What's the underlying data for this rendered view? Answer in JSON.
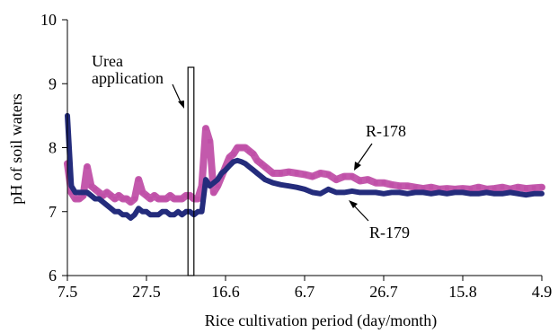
{
  "chart_data": {
    "type": "line",
    "title": "",
    "xlabel": "Rice cultivation period (day/month)",
    "ylabel": "pH of soil waters",
    "ylim": [
      6,
      10
    ],
    "xlim": [
      0,
      120
    ],
    "xticks": [
      {
        "x": 0,
        "label": "7.5"
      },
      {
        "x": 20,
        "label": "27.5"
      },
      {
        "x": 40,
        "label": "16.6"
      },
      {
        "x": 60,
        "label": "6.7"
      },
      {
        "x": 80,
        "label": "26.7"
      },
      {
        "x": 100,
        "label": "15.8"
      },
      {
        "x": 120,
        "label": "4.9"
      }
    ],
    "yticks": [
      6,
      7,
      8,
      9,
      10
    ],
    "grid": false,
    "legend": "none",
    "annotations": {
      "urea_label_line1": "Urea",
      "urea_label_line2": "application",
      "urea_period": [
        30.5,
        32.0
      ],
      "series_label_1": "R-178",
      "series_label_2": "R-179"
    },
    "series": [
      {
        "name": "R-178",
        "color": "#c050a8",
        "x": [
          0,
          1,
          2,
          3,
          4,
          5,
          6,
          7,
          8,
          9,
          10,
          11,
          12,
          13,
          14,
          15,
          16,
          17,
          18,
          19,
          20,
          21,
          22,
          23,
          24,
          25,
          26,
          27,
          28,
          29,
          30,
          31,
          32,
          33,
          34,
          35,
          36,
          37,
          38,
          39,
          40,
          41,
          42,
          43,
          44,
          45,
          46,
          47,
          48,
          49,
          50,
          52,
          54,
          56,
          58,
          60,
          62,
          64,
          66,
          68,
          70,
          72,
          74,
          76,
          78,
          80,
          82,
          84,
          86,
          88,
          90,
          92,
          94,
          96,
          98,
          100,
          102,
          104,
          106,
          108,
          110,
          112,
          114,
          116,
          118,
          120
        ],
        "y": [
          7.75,
          7.3,
          7.2,
          7.2,
          7.25,
          7.7,
          7.4,
          7.35,
          7.3,
          7.25,
          7.3,
          7.25,
          7.2,
          7.25,
          7.2,
          7.2,
          7.15,
          7.2,
          7.5,
          7.3,
          7.25,
          7.2,
          7.25,
          7.2,
          7.2,
          7.2,
          7.25,
          7.2,
          7.2,
          7.2,
          7.25,
          7.25,
          7.2,
          7.2,
          7.4,
          8.3,
          8.1,
          7.3,
          7.4,
          7.55,
          7.7,
          7.85,
          7.9,
          8.0,
          8.0,
          8.0,
          7.95,
          7.9,
          7.8,
          7.75,
          7.7,
          7.6,
          7.6,
          7.62,
          7.6,
          7.58,
          7.55,
          7.6,
          7.58,
          7.5,
          7.55,
          7.55,
          7.48,
          7.5,
          7.45,
          7.45,
          7.42,
          7.4,
          7.4,
          7.38,
          7.36,
          7.38,
          7.35,
          7.36,
          7.35,
          7.36,
          7.35,
          7.38,
          7.35,
          7.36,
          7.38,
          7.35,
          7.38,
          7.36,
          7.37,
          7.38
        ]
      },
      {
        "name": "R-179",
        "color": "#242c7c",
        "x": [
          0,
          1,
          2,
          3,
          4,
          5,
          6,
          7,
          8,
          9,
          10,
          11,
          12,
          13,
          14,
          15,
          16,
          17,
          18,
          19,
          20,
          21,
          22,
          23,
          24,
          25,
          26,
          27,
          28,
          29,
          30,
          31,
          32,
          33,
          34,
          35,
          36,
          37,
          38,
          39,
          40,
          41,
          42,
          43,
          44,
          45,
          46,
          47,
          48,
          49,
          50,
          52,
          54,
          56,
          58,
          60,
          62,
          64,
          66,
          68,
          70,
          72,
          74,
          76,
          78,
          80,
          82,
          84,
          86,
          88,
          90,
          92,
          94,
          96,
          98,
          100,
          102,
          104,
          106,
          108,
          110,
          112,
          114,
          116,
          118,
          120
        ],
        "y": [
          8.5,
          7.4,
          7.3,
          7.3,
          7.3,
          7.3,
          7.25,
          7.2,
          7.2,
          7.15,
          7.1,
          7.05,
          7.0,
          7.0,
          6.95,
          6.95,
          6.9,
          6.95,
          7.05,
          7.0,
          7.0,
          6.95,
          6.95,
          6.95,
          7.0,
          7.0,
          6.95,
          6.95,
          7.0,
          6.95,
          7.0,
          7.0,
          6.95,
          7.0,
          7.0,
          7.5,
          7.4,
          7.45,
          7.5,
          7.6,
          7.65,
          7.72,
          7.78,
          7.8,
          7.78,
          7.75,
          7.7,
          7.65,
          7.6,
          7.55,
          7.5,
          7.45,
          7.42,
          7.4,
          7.38,
          7.35,
          7.3,
          7.28,
          7.35,
          7.3,
          7.3,
          7.32,
          7.3,
          7.3,
          7.3,
          7.28,
          7.3,
          7.3,
          7.28,
          7.3,
          7.3,
          7.28,
          7.3,
          7.28,
          7.3,
          7.3,
          7.28,
          7.28,
          7.3,
          7.28,
          7.28,
          7.3,
          7.28,
          7.26,
          7.28,
          7.28
        ]
      }
    ]
  }
}
